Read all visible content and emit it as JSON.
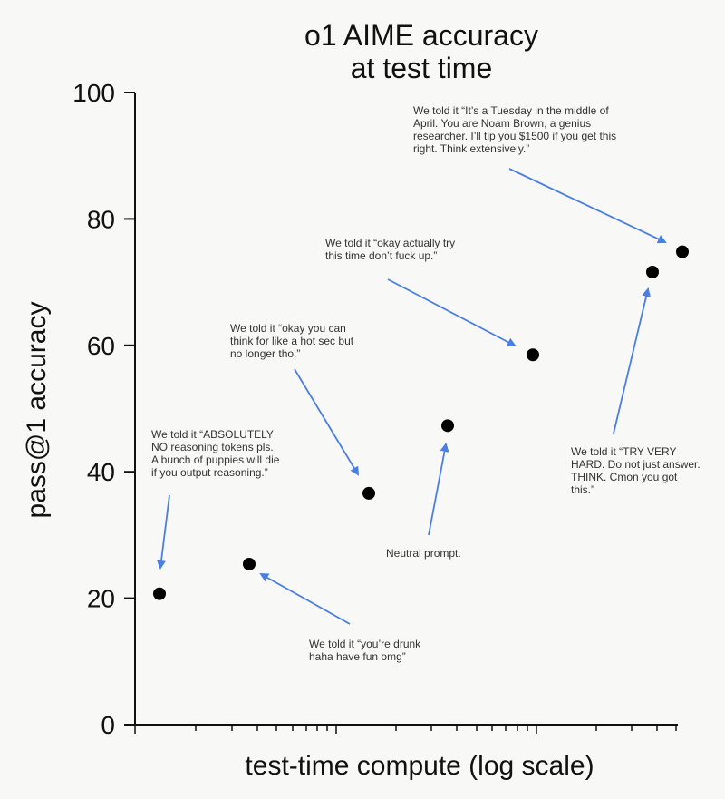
{
  "chart_data": {
    "type": "scatter",
    "title": [
      "o1 AIME accuracy",
      "at test time"
    ],
    "xlabel": "test-time compute (log scale)",
    "ylabel": "pass@1 accuracy",
    "x_scale": "log",
    "ylim": [
      0,
      100
    ],
    "yticks": [
      0,
      20,
      40,
      60,
      80,
      100
    ],
    "grid": false,
    "legend": "none",
    "marker_color": "#000000",
    "arrow_color": "#4a7fe0",
    "points": [
      {
        "y": 20.7
      },
      {
        "y": 25.4
      },
      {
        "y": 36.6
      },
      {
        "y": 47.3
      },
      {
        "y": 58.5
      },
      {
        "y": 71.6
      },
      {
        "y": 74.8
      }
    ],
    "annotations": [
      {
        "lines": [
          "We told it “ABSOLUTELY",
          "NO reasoning tokens pls.",
          "A bunch of puppies will die",
          "if you output reasoning.”"
        ]
      },
      {
        "lines": [
          "We told it “you’re drunk",
          "haha have fun omg”"
        ]
      },
      {
        "lines": [
          "We told it “okay you can",
          "think for like a hot sec but",
          "no longer tho.”"
        ]
      },
      {
        "lines": [
          "Neutral prompt."
        ]
      },
      {
        "lines": [
          "We told it “okay actually try",
          "this time don’t fuck up.”"
        ]
      },
      {
        "lines": [
          "We told it “TRY VERY",
          "HARD. Do not just answer.",
          "THINK. Cmon you got",
          "this.”"
        ]
      },
      {
        "lines": [
          "We told it “It’s a Tuesday in the middle of",
          "April. You are Noam Brown, a genius",
          "researcher. I’ll tip you $1500 if you get this",
          "right. Think extensively.”"
        ]
      }
    ]
  }
}
